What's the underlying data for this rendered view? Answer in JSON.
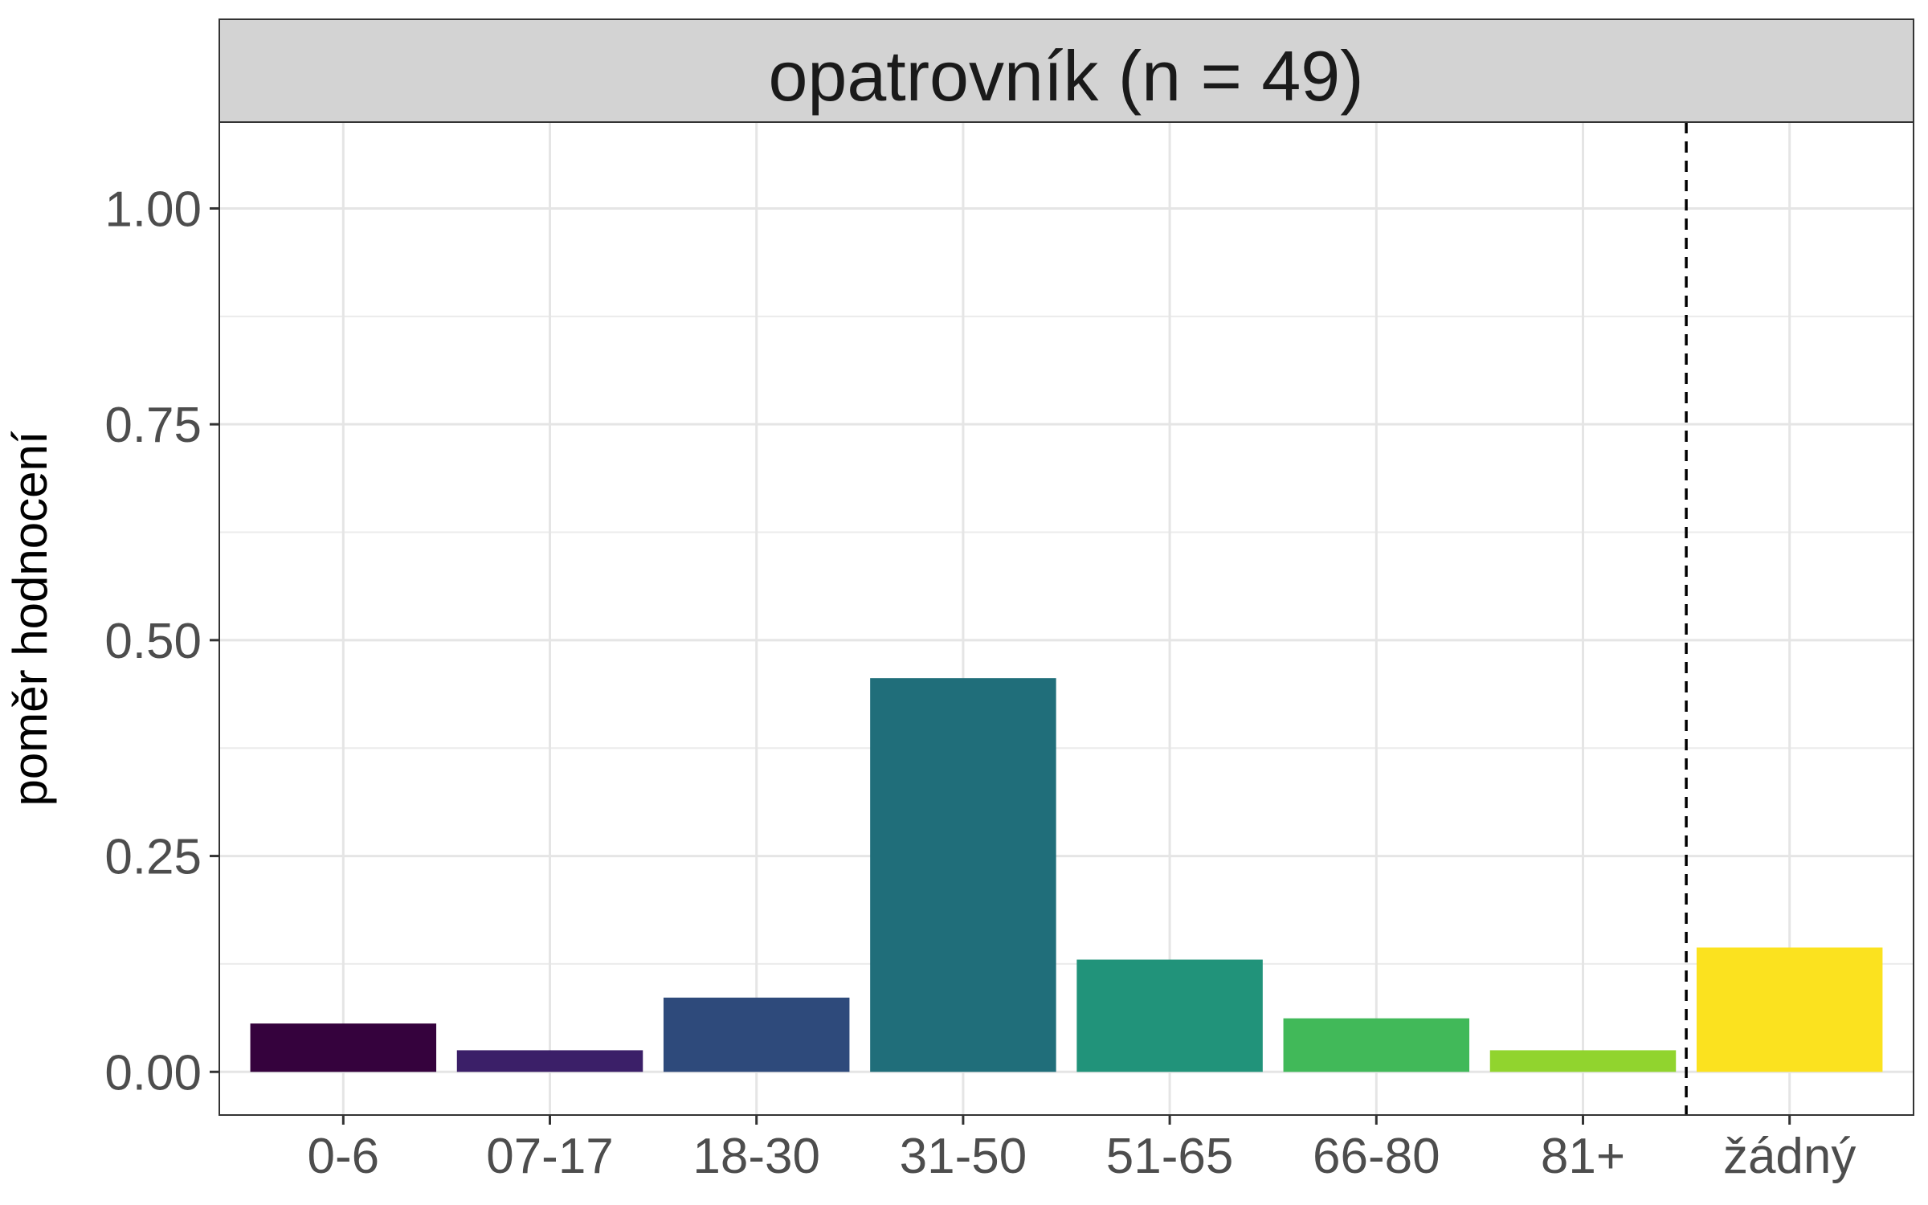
{
  "chart_data": {
    "type": "bar",
    "facet_title": "opatrovník (n = 49)",
    "ylabel": "poměr hodnocení",
    "xlabel": "",
    "categories": [
      "0-6",
      "07-17",
      "18-30",
      "31-50",
      "51-65",
      "66-80",
      "81+",
      "žádný"
    ],
    "values": [
      0.056,
      0.025,
      0.086,
      0.456,
      0.13,
      0.062,
      0.025,
      0.144
    ],
    "colors": [
      "#35023d",
      "#3b1f68",
      "#2e4a7b",
      "#206e7a",
      "#21937a",
      "#41b959",
      "#91d42e",
      "#fbe21f"
    ],
    "ylim": [
      -0.05,
      1.1
    ],
    "yticks": [
      0,
      0.25,
      0.5,
      0.75,
      1.0
    ],
    "ytick_labels": [
      "0.00",
      "0.25",
      "0.50",
      "0.75",
      "1.00"
    ],
    "separator_after_index": 6,
    "separator_style": "dashed",
    "grid": true,
    "legend": "none"
  }
}
